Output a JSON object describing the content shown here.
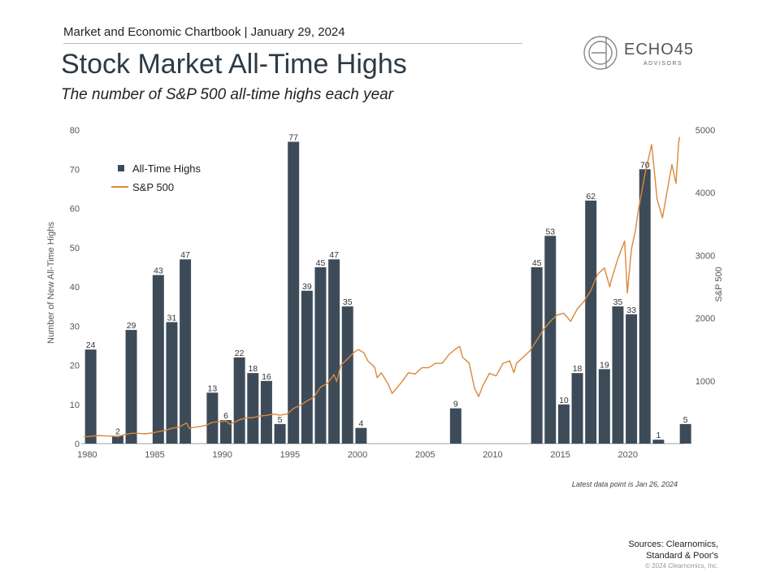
{
  "header": {
    "kicker": "Market and Economic Chartbook | January 29, 2024",
    "title": "Stock Market All-Time Highs",
    "subtitle": "The number of S&P 500 all-time highs each year"
  },
  "logo": {
    "name": "ECHO45",
    "sub": "ADVISORS"
  },
  "note": "Latest data point is Jan 26, 2024",
  "sources": {
    "line1": "Sources: Clearnomics,",
    "line2": "Standard & Poor's"
  },
  "copyright": "© 2024 Clearnomics, Inc.",
  "colors": {
    "bar": "#3d4b59",
    "line": "#d9893a",
    "axis": "#555555"
  },
  "chart_data": {
    "type": "bar+line",
    "title": "Stock Market All-Time Highs",
    "ylabel": "Number of New All-Time Highs",
    "y2label": "S&P 500",
    "ylim": [
      0,
      80
    ],
    "y2lim": [
      0,
      5000
    ],
    "yticks": [
      0,
      10,
      20,
      30,
      40,
      50,
      60,
      70,
      80
    ],
    "y2ticks": [
      1000,
      2000,
      3000,
      4000,
      5000
    ],
    "xticks": [
      1980,
      1985,
      1990,
      1995,
      2000,
      2005,
      2010,
      2015,
      2020
    ],
    "legend": {
      "position": "top-left",
      "bar_label": "All-Time Highs",
      "line_label": "S&P 500"
    },
    "bars": {
      "name": "All-Time Highs",
      "years": [
        1980,
        1982,
        1983,
        1985,
        1986,
        1987,
        1989,
        1990,
        1991,
        1992,
        1993,
        1994,
        1995,
        1996,
        1997,
        1998,
        1999,
        2000,
        2007,
        2013,
        2014,
        2015,
        2016,
        2017,
        2018,
        2019,
        2020,
        2021,
        2022,
        2024
      ],
      "values": [
        24,
        2,
        29,
        43,
        31,
        47,
        13,
        6,
        22,
        18,
        16,
        5,
        77,
        39,
        45,
        47,
        35,
        4,
        9,
        45,
        53,
        10,
        18,
        62,
        19,
        35,
        33,
        70,
        1,
        5
      ]
    },
    "series": [
      {
        "name": "S&P 500",
        "x": [
          1980.0,
          1980.5,
          1981.0,
          1981.5,
          1982.0,
          1982.5,
          1983.0,
          1983.5,
          1984.0,
          1984.5,
          1985.0,
          1985.5,
          1986.0,
          1986.5,
          1987.0,
          1987.6,
          1987.8,
          1988.0,
          1988.5,
          1989.0,
          1989.5,
          1990.0,
          1990.5,
          1990.8,
          1991.0,
          1991.5,
          1992.0,
          1992.5,
          1993.0,
          1993.5,
          1994.0,
          1994.5,
          1995.0,
          1995.5,
          1996.0,
          1996.5,
          1997.0,
          1997.5,
          1998.0,
          1998.5,
          1998.7,
          1999.0,
          1999.5,
          2000.0,
          2000.3,
          2000.7,
          2001.0,
          2001.5,
          2001.7,
          2002.0,
          2002.5,
          2002.8,
          2003.0,
          2003.5,
          2004.0,
          2004.5,
          2005.0,
          2005.5,
          2006.0,
          2006.5,
          2007.0,
          2007.5,
          2007.8,
          2008.0,
          2008.5,
          2008.9,
          2009.2,
          2009.5,
          2010.0,
          2010.5,
          2011.0,
          2011.5,
          2011.8,
          2012.0,
          2012.5,
          2013.0,
          2013.5,
          2014.0,
          2014.5,
          2015.0,
          2015.5,
          2016.0,
          2016.5,
          2017.0,
          2017.5,
          2018.0,
          2018.5,
          2018.9,
          2019.0,
          2019.5,
          2020.0,
          2020.2,
          2020.5,
          2020.8,
          2021.0,
          2021.5,
          2022.0,
          2022.4,
          2022.8,
          2023.0,
          2023.5,
          2023.8,
          2024.0,
          2024.07
        ],
        "values": [
          108,
          115,
          130,
          125,
          120,
          110,
          145,
          165,
          165,
          155,
          170,
          190,
          210,
          245,
          260,
          330,
          240,
          255,
          270,
          290,
          340,
          350,
          360,
          310,
          330,
          380,
          410,
          415,
          440,
          450,
          470,
          455,
          470,
          560,
          610,
          680,
          740,
          900,
          960,
          1100,
          990,
          1250,
          1350,
          1460,
          1500,
          1450,
          1320,
          1220,
          1050,
          1130,
          950,
          800,
          850,
          980,
          1130,
          1110,
          1210,
          1210,
          1280,
          1280,
          1420,
          1510,
          1550,
          1380,
          1280,
          880,
          750,
          920,
          1120,
          1080,
          1280,
          1320,
          1130,
          1280,
          1380,
          1480,
          1650,
          1820,
          1950,
          2050,
          2080,
          1950,
          2150,
          2270,
          2440,
          2700,
          2800,
          2500,
          2600,
          2950,
          3230,
          2400,
          3100,
          3400,
          3700,
          4300,
          4770,
          3900,
          3600,
          3850,
          4450,
          4150,
          4800,
          4890
        ]
      }
    ]
  }
}
